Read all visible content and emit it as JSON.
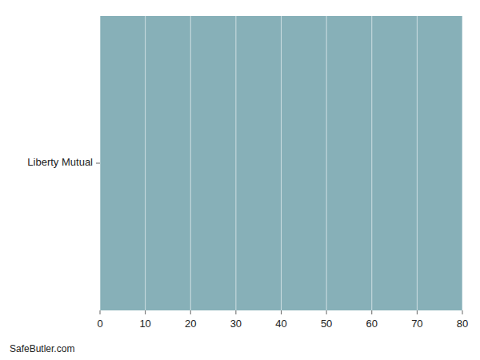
{
  "chart_data": {
    "type": "bar",
    "orientation": "horizontal",
    "categories": [
      "Liberty Mutual"
    ],
    "values": [
      80
    ],
    "color": "#87b0b8",
    "xlim": [
      0,
      80
    ],
    "xticks": [
      0,
      10,
      20,
      30,
      40,
      50,
      60,
      70,
      80
    ],
    "grid": true,
    "annotations": [
      "SafeButler.com"
    ]
  }
}
